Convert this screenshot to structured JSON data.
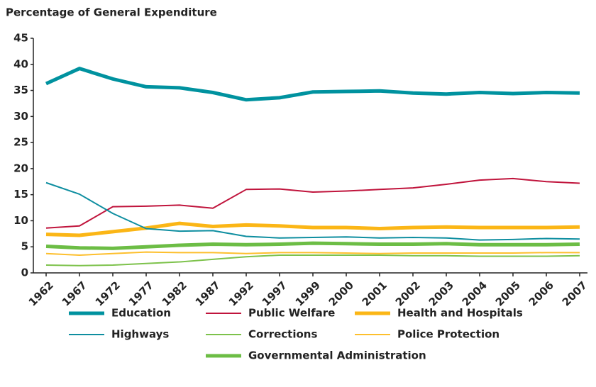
{
  "chart_data": {
    "type": "line",
    "title": "Percentage of General Expenditure",
    "categories": [
      "1962",
      "1967",
      "1972",
      "1977",
      "1982",
      "1987",
      "1992",
      "1997",
      "1999",
      "2000",
      "2001",
      "2002",
      "2003",
      "2004",
      "2005",
      "2006",
      "2007"
    ],
    "ylim": [
      0,
      45
    ],
    "yticks": [
      0,
      5,
      10,
      15,
      20,
      25,
      30,
      35,
      40,
      45
    ],
    "grid": false,
    "series": [
      {
        "name": "Education",
        "color": "#00929f",
        "width": 5,
        "values": [
          36.3,
          39.2,
          37.2,
          35.7,
          35.5,
          34.6,
          33.2,
          33.6,
          34.7,
          34.8,
          34.9,
          34.5,
          34.3,
          34.6,
          34.4,
          34.6,
          34.5
        ]
      },
      {
        "name": "Public Welfare",
        "color": "#c0143c",
        "width": 2,
        "values": [
          8.6,
          9.0,
          12.7,
          12.8,
          13.0,
          12.4,
          16.0,
          16.1,
          15.5,
          15.7,
          16.0,
          16.3,
          17.0,
          17.8,
          18.1,
          17.5,
          17.2
        ]
      },
      {
        "name": "Health and Hospitals",
        "color": "#fbb616",
        "width": 5,
        "values": [
          7.4,
          7.2,
          7.9,
          8.6,
          9.5,
          8.9,
          9.2,
          9.0,
          8.7,
          8.7,
          8.5,
          8.7,
          8.8,
          8.7,
          8.7,
          8.7,
          8.8
        ]
      },
      {
        "name": "Highways",
        "color": "#0e8ea0",
        "width": 2,
        "values": [
          17.3,
          15.1,
          11.4,
          8.5,
          8.0,
          8.1,
          7.0,
          6.7,
          6.8,
          6.9,
          6.7,
          6.8,
          6.7,
          6.3,
          6.4,
          6.6,
          6.5
        ]
      },
      {
        "name": "Corrections",
        "color": "#7dc24b",
        "width": 2,
        "values": [
          1.5,
          1.4,
          1.5,
          1.8,
          2.1,
          2.6,
          3.1,
          3.4,
          3.4,
          3.4,
          3.4,
          3.3,
          3.3,
          3.2,
          3.2,
          3.2,
          3.3
        ]
      },
      {
        "name": "Police Protection",
        "color": "#fdbf2d",
        "width": 2,
        "values": [
          3.7,
          3.4,
          3.7,
          4.0,
          3.9,
          3.9,
          3.7,
          3.9,
          3.9,
          3.8,
          3.7,
          3.8,
          3.8,
          3.8,
          3.8,
          3.9,
          3.9
        ]
      },
      {
        "name": "Governmental Administration",
        "color": "#6cbd45",
        "width": 5,
        "values": [
          5.1,
          4.8,
          4.7,
          5.0,
          5.3,
          5.5,
          5.4,
          5.5,
          5.7,
          5.6,
          5.5,
          5.5,
          5.6,
          5.4,
          5.4,
          5.4,
          5.5
        ]
      }
    ]
  }
}
